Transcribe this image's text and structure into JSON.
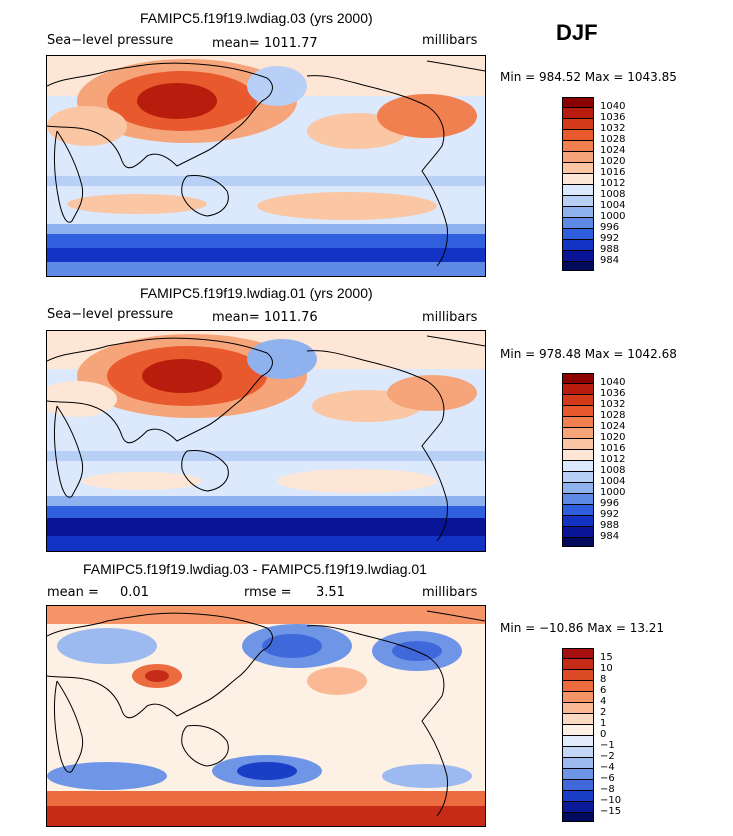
{
  "season": "DJF",
  "panels": [
    {
      "title": "FAMIPC5.f19f19.lwdiag.03 (yrs 2000)",
      "field": "Sea−level pressure",
      "stat": "mean= 1011.77",
      "units": "millibars",
      "minmax": "Min = 984.52 Max = 1043.85",
      "colorbar_labels": [
        "1040",
        "1036",
        "1032",
        "1028",
        "1024",
        "1020",
        "1016",
        "1012",
        "1008",
        "1004",
        "1000",
        "996",
        "992",
        "988",
        "984"
      ]
    },
    {
      "title": "FAMIPC5.f19f19.lwdiag.01 (yrs 2000)",
      "field": "Sea−level pressure",
      "stat": "mean= 1011.76",
      "units": "millibars",
      "minmax": "Min = 978.48 Max = 1042.68",
      "colorbar_labels": [
        "1040",
        "1036",
        "1032",
        "1028",
        "1024",
        "1020",
        "1016",
        "1012",
        "1008",
        "1004",
        "1000",
        "996",
        "992",
        "988",
        "984"
      ]
    },
    {
      "title": "FAMIPC5.f19f19.lwdiag.03 - FAMIPC5.f19f19.lwdiag.01",
      "mean_label": "mean =",
      "mean_value": "0.01",
      "rmse_label": "rmse =",
      "rmse_value": "3.51",
      "units": "millibars",
      "minmax": "Min = −10.86 Max =  13.21",
      "colorbar_labels": [
        "15",
        "10",
        "8",
        "6",
        "4",
        "2",
        "1",
        "0",
        "−1",
        "−2",
        "−4",
        "−6",
        "−8",
        "−10",
        "−15"
      ]
    }
  ],
  "colors": {
    "abs_scale": [
      "#8b0000",
      "#b71c0c",
      "#d33a1a",
      "#e8592e",
      "#f0804f",
      "#f6a57a",
      "#fac6a3",
      "#fde6d6",
      "#dce8fb",
      "#b8d0f6",
      "#8fb2ee",
      "#5e8ae6",
      "#2f5fdc",
      "#1233c4",
      "#0a1496",
      "#020a5c"
    ],
    "diff_scale": [
      "#a50f0f",
      "#c62b17",
      "#dc4a26",
      "#ec6b3f",
      "#f59467",
      "#fab994",
      "#fdd9c2",
      "#fdf0e4",
      "#e3ecfb",
      "#c4d6f6",
      "#9cbaef",
      "#6f95e6",
      "#3f69da",
      "#1a3ec6",
      "#0a1a98",
      "#030b5e"
    ],
    "coast": "#000000"
  },
  "chart_data": [
    {
      "type": "heatmap",
      "title": "FAMIPC5.f19f19.lwdiag.03 (yrs 2000)",
      "variable": "Sea-level pressure",
      "units": "millibars",
      "mean": 1011.77,
      "min": 984.52,
      "max": 1043.85,
      "contour_levels": [
        984,
        988,
        992,
        996,
        1000,
        1004,
        1008,
        1012,
        1016,
        1020,
        1024,
        1028,
        1032,
        1036,
        1040
      ],
      "season": "DJF"
    },
    {
      "type": "heatmap",
      "title": "FAMIPC5.f19f19.lwdiag.01 (yrs 2000)",
      "variable": "Sea-level pressure",
      "units": "millibars",
      "mean": 1011.76,
      "min": 978.48,
      "max": 1042.68,
      "contour_levels": [
        984,
        988,
        992,
        996,
        1000,
        1004,
        1008,
        1012,
        1016,
        1020,
        1024,
        1028,
        1032,
        1036,
        1040
      ],
      "season": "DJF"
    },
    {
      "type": "heatmap",
      "title": "FAMIPC5.f19f19.lwdiag.03 - FAMIPC5.f19f19.lwdiag.01",
      "units": "millibars",
      "mean": 0.01,
      "rmse": 3.51,
      "min": -10.86,
      "max": 13.21,
      "contour_levels": [
        -15,
        -10,
        -8,
        -6,
        -4,
        -2,
        -1,
        0,
        1,
        2,
        4,
        6,
        8,
        10,
        15
      ],
      "season": "DJF"
    }
  ]
}
